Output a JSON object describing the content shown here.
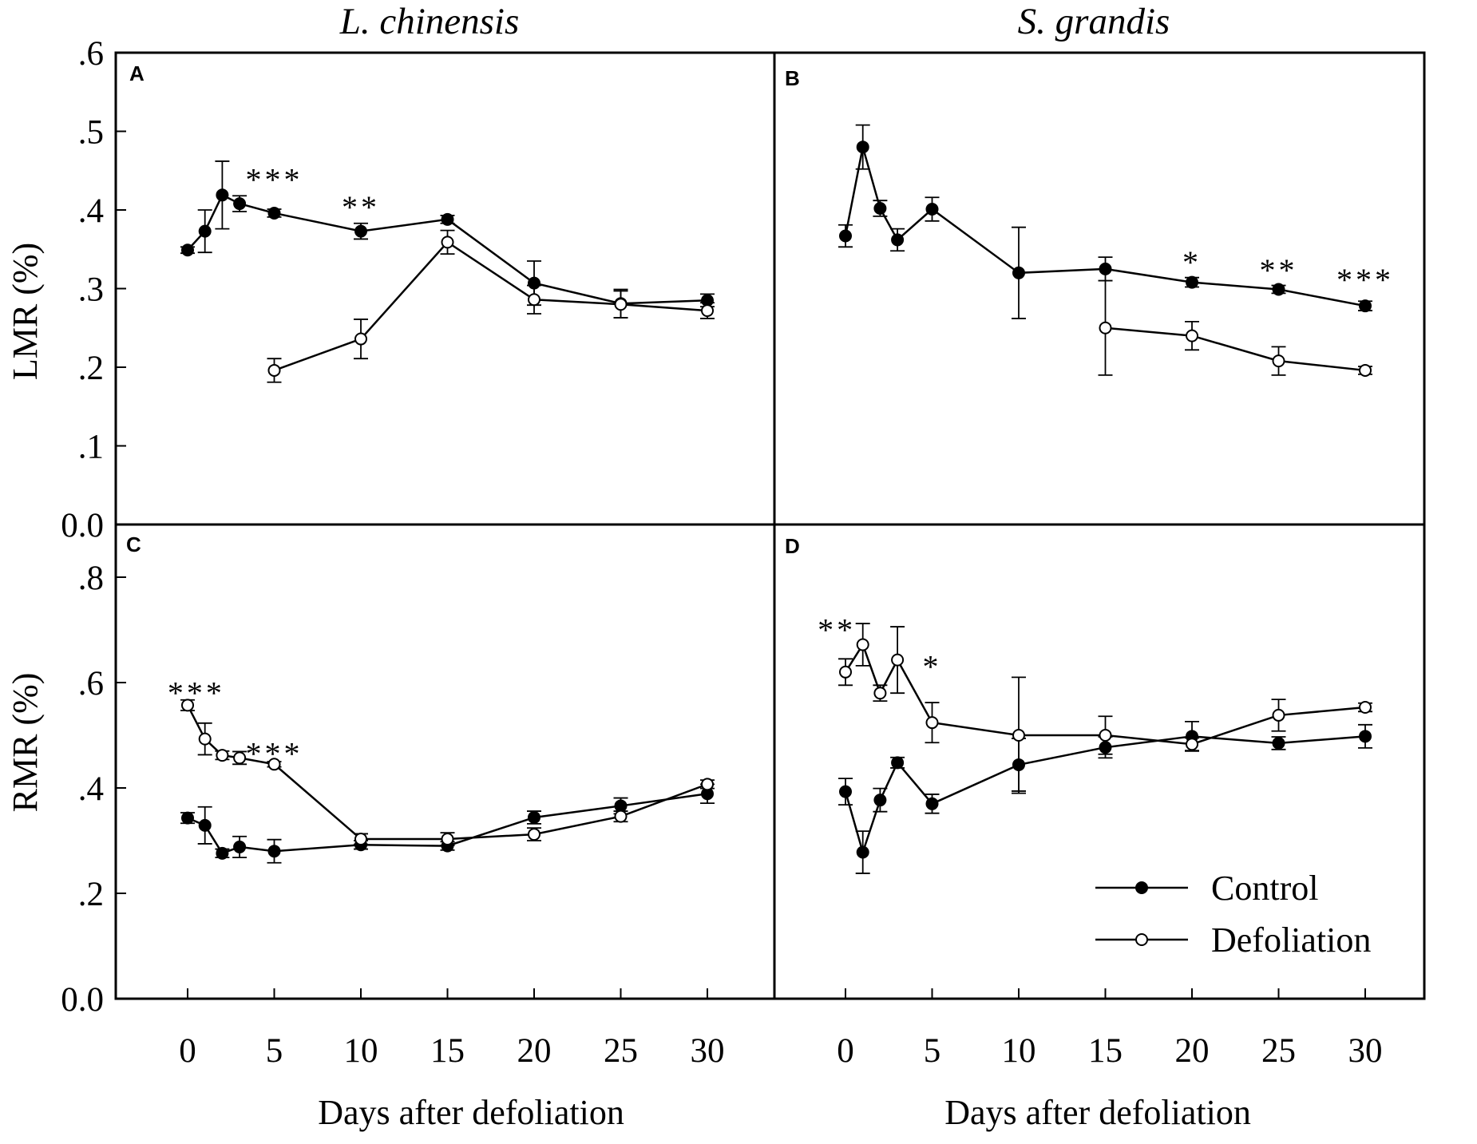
{
  "chart_data": {
    "type": "line",
    "title": "",
    "species_titles": [
      "L. chinensis",
      "S. grandis"
    ],
    "xlabel": "Days after defoliation",
    "x_ticks": [
      0,
      5,
      10,
      15,
      20,
      25,
      30
    ],
    "xlim": [
      -4,
      34
    ],
    "legend": {
      "placement": "bottom-right of panel D",
      "entries": [
        {
          "name": "Control",
          "marker": "filled-circle"
        },
        {
          "name": "Defoliation",
          "marker": "open-circle"
        }
      ]
    },
    "rows": [
      {
        "ylabel": "LMR (%)",
        "ylim": [
          0,
          0.6
        ],
        "yticks": [
          0,
          0.1,
          0.2,
          0.3,
          0.4,
          0.5,
          0.6
        ],
        "ytick_labels": [
          "0.0",
          ".1",
          ".2",
          ".3",
          ".4",
          ".5",
          ".6"
        ]
      },
      {
        "ylabel": "RMR (%)",
        "ylim": [
          0,
          0.9
        ],
        "yticks": [
          0,
          0.2,
          0.4,
          0.6,
          0.8
        ],
        "ytick_labels": [
          "0.0",
          ".2",
          ".4",
          ".6",
          ".8"
        ]
      }
    ],
    "panels": [
      {
        "id": "A",
        "row": 0,
        "col": 0,
        "series": [
          {
            "name": "Control",
            "points": [
              {
                "x": 0,
                "y": 0.349,
                "err": 0.004
              },
              {
                "x": 1,
                "y": 0.373,
                "err": 0.027
              },
              {
                "x": 2,
                "y": 0.419,
                "err": 0.043
              },
              {
                "x": 3,
                "y": 0.408,
                "err": 0.01
              },
              {
                "x": 5,
                "y": 0.396,
                "err": 0.005
              },
              {
                "x": 10,
                "y": 0.373,
                "err": 0.01
              },
              {
                "x": 15,
                "y": 0.388,
                "err": 0.005
              },
              {
                "x": 20,
                "y": 0.307,
                "err": 0.028
              },
              {
                "x": 25,
                "y": 0.281,
                "err": 0.018
              },
              {
                "x": 30,
                "y": 0.285,
                "err": 0.008
              }
            ]
          },
          {
            "name": "Defoliation",
            "points": [
              {
                "x": 5,
                "y": 0.196,
                "err": 0.015
              },
              {
                "x": 10,
                "y": 0.236,
                "err": 0.025
              },
              {
                "x": 15,
                "y": 0.359,
                "err": 0.015
              },
              {
                "x": 20,
                "y": 0.286,
                "err": 0.018
              },
              {
                "x": 25,
                "y": 0.28,
                "err": 0.017
              },
              {
                "x": 30,
                "y": 0.272,
                "err": 0.01
              }
            ]
          }
        ],
        "annotations": [
          {
            "x": 5,
            "y": 0.445,
            "text": "***"
          },
          {
            "x": 10,
            "y": 0.41,
            "text": "**"
          }
        ]
      },
      {
        "id": "B",
        "row": 0,
        "col": 1,
        "series": [
          {
            "name": "Control",
            "points": [
              {
                "x": 0,
                "y": 0.367,
                "err": 0.014
              },
              {
                "x": 1,
                "y": 0.48,
                "err": 0.028
              },
              {
                "x": 2,
                "y": 0.402,
                "err": 0.01
              },
              {
                "x": 3,
                "y": 0.362,
                "err": 0.014
              },
              {
                "x": 5,
                "y": 0.401,
                "err": 0.015
              },
              {
                "x": 10,
                "y": 0.32,
                "err": 0.058
              },
              {
                "x": 15,
                "y": 0.325,
                "err": 0.015
              },
              {
                "x": 20,
                "y": 0.308,
                "err": 0.006
              },
              {
                "x": 25,
                "y": 0.299,
                "err": 0.005
              },
              {
                "x": 30,
                "y": 0.278,
                "err": 0.006
              }
            ]
          },
          {
            "name": "Defoliation",
            "points": [
              {
                "x": 15,
                "y": 0.25,
                "err": 0.06
              },
              {
                "x": 20,
                "y": 0.24,
                "err": 0.018
              },
              {
                "x": 25,
                "y": 0.208,
                "err": 0.018
              },
              {
                "x": 30,
                "y": 0.196,
                "err": 0.005
              }
            ]
          }
        ],
        "annotations": [
          {
            "x": 20,
            "y": 0.34,
            "text": "*"
          },
          {
            "x": 25,
            "y": 0.33,
            "text": "**"
          },
          {
            "x": 30,
            "y": 0.318,
            "text": "***"
          }
        ]
      },
      {
        "id": "C",
        "row": 1,
        "col": 0,
        "series": [
          {
            "name": "Control",
            "points": [
              {
                "x": 0,
                "y": 0.343,
                "err": 0.01
              },
              {
                "x": 1,
                "y": 0.329,
                "err": 0.035
              },
              {
                "x": 2,
                "y": 0.276,
                "err": 0.008
              },
              {
                "x": 3,
                "y": 0.288,
                "err": 0.02
              },
              {
                "x": 5,
                "y": 0.28,
                "err": 0.022
              },
              {
                "x": 10,
                "y": 0.292,
                "err": 0.008
              },
              {
                "x": 15,
                "y": 0.29,
                "err": 0.008
              },
              {
                "x": 20,
                "y": 0.344,
                "err": 0.012
              },
              {
                "x": 25,
                "y": 0.366,
                "err": 0.015
              },
              {
                "x": 30,
                "y": 0.389,
                "err": 0.018
              }
            ]
          },
          {
            "name": "Defoliation",
            "points": [
              {
                "x": 0,
                "y": 0.557,
                "err": 0.01
              },
              {
                "x": 1,
                "y": 0.493,
                "err": 0.03
              },
              {
                "x": 2,
                "y": 0.462,
                "err": 0.008
              },
              {
                "x": 3,
                "y": 0.457,
                "err": 0.012
              },
              {
                "x": 5,
                "y": 0.445,
                "err": 0.005
              },
              {
                "x": 10,
                "y": 0.303,
                "err": 0.01
              },
              {
                "x": 15,
                "y": 0.303,
                "err": 0.012
              },
              {
                "x": 20,
                "y": 0.312,
                "err": 0.012
              },
              {
                "x": 25,
                "y": 0.346,
                "err": 0.01
              },
              {
                "x": 30,
                "y": 0.407,
                "err": 0.008
              }
            ]
          }
        ],
        "annotations": [
          {
            "x": 0.5,
            "y": 0.59,
            "text": "***"
          },
          {
            "x": 5,
            "y": 0.475,
            "text": "***"
          }
        ]
      },
      {
        "id": "D",
        "row": 1,
        "col": 1,
        "series": [
          {
            "name": "Control",
            "points": [
              {
                "x": 0,
                "y": 0.393,
                "err": 0.025
              },
              {
                "x": 1,
                "y": 0.278,
                "err": 0.04
              },
              {
                "x": 2,
                "y": 0.377,
                "err": 0.022
              },
              {
                "x": 3,
                "y": 0.448,
                "err": 0.01
              },
              {
                "x": 5,
                "y": 0.37,
                "err": 0.018
              },
              {
                "x": 10,
                "y": 0.444,
                "err": 0.05
              },
              {
                "x": 15,
                "y": 0.477,
                "err": 0.02
              },
              {
                "x": 20,
                "y": 0.498,
                "err": 0.028
              },
              {
                "x": 25,
                "y": 0.485,
                "err": 0.012
              },
              {
                "x": 30,
                "y": 0.498,
                "err": 0.022
              }
            ]
          },
          {
            "name": "Defoliation",
            "points": [
              {
                "x": 0,
                "y": 0.62,
                "err": 0.025
              },
              {
                "x": 1,
                "y": 0.672,
                "err": 0.04
              },
              {
                "x": 2,
                "y": 0.58,
                "err": 0.015
              },
              {
                "x": 3,
                "y": 0.643,
                "err": 0.063
              },
              {
                "x": 5,
                "y": 0.524,
                "err": 0.038
              },
              {
                "x": 10,
                "y": 0.5,
                "err": 0.11
              },
              {
                "x": 15,
                "y": 0.5,
                "err": 0.036
              },
              {
                "x": 20,
                "y": 0.483,
                "err": 0.012
              },
              {
                "x": 25,
                "y": 0.538,
                "err": 0.03
              },
              {
                "x": 30,
                "y": 0.553,
                "err": 0.008
              }
            ]
          }
        ],
        "annotations": [
          {
            "x": -0.5,
            "y": 0.71,
            "text": "**"
          },
          {
            "x": 5,
            "y": 0.64,
            "text": "*"
          }
        ]
      }
    ]
  }
}
